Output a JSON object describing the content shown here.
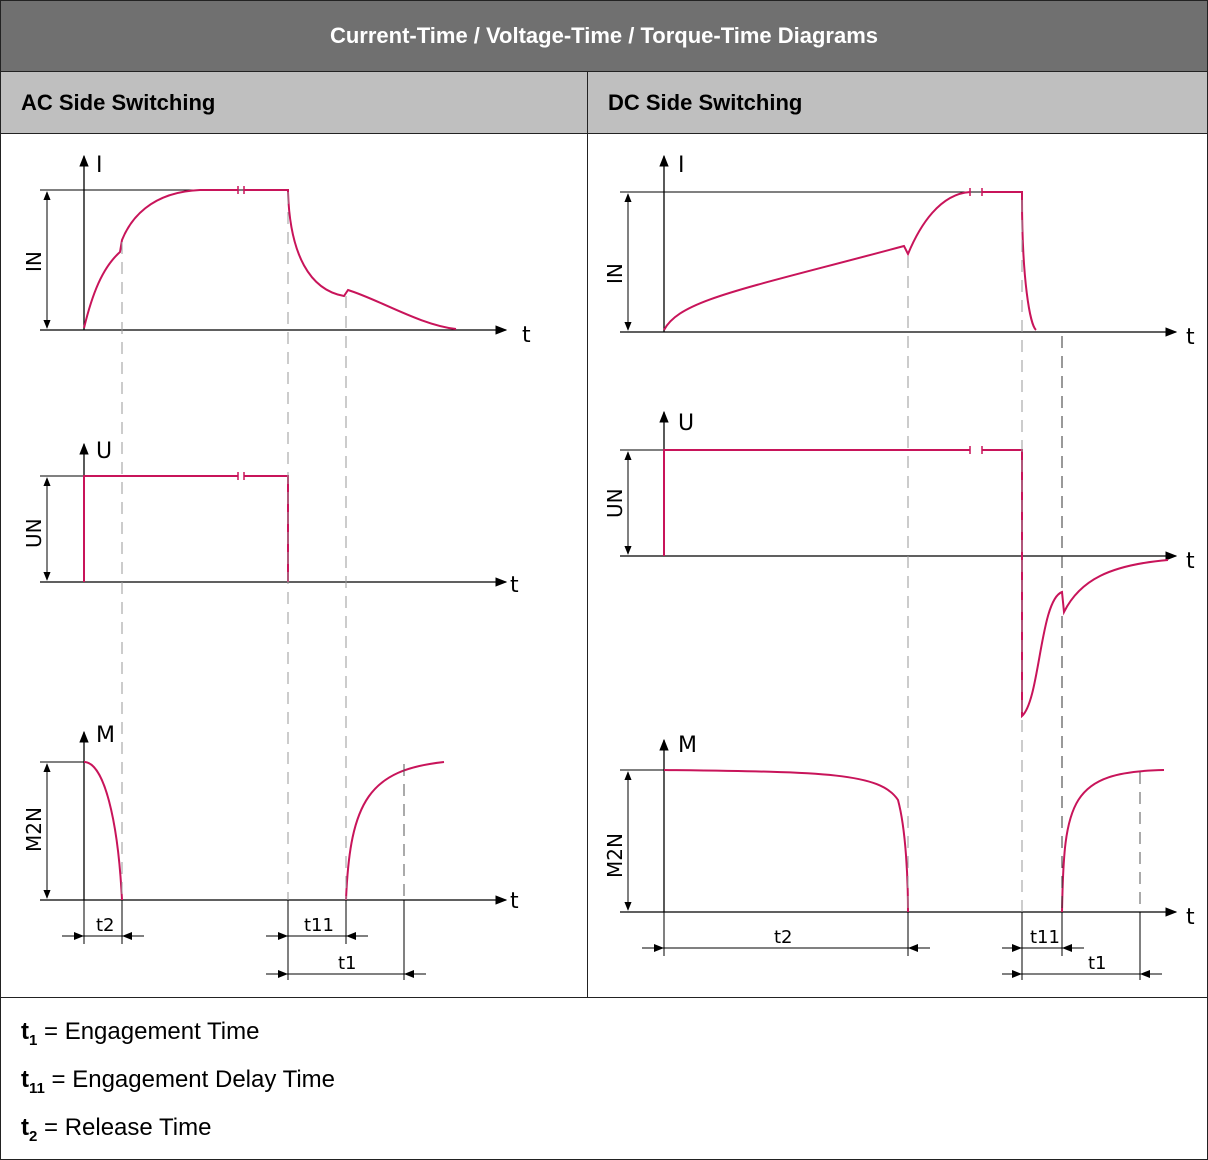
{
  "title": "Current-Time / Voltage-Time / Torque-Time Diagrams",
  "columns": {
    "ac": "AC Side Switching",
    "dc": "DC Side Switching"
  },
  "axis_labels": {
    "current": "I",
    "voltage": "U",
    "torque": "M",
    "time": "t",
    "rated_current": "IN",
    "rated_voltage": "UN",
    "rated_torque": "M2N"
  },
  "time_markers": {
    "t1": "t1",
    "t11": "t11",
    "t2": "t2"
  },
  "legend": [
    {
      "symbol": "t",
      "sub": "1",
      "text": " = Engagement Time"
    },
    {
      "symbol": "t",
      "sub": "11",
      "text": " = Engagement Delay Time"
    },
    {
      "symbol": "t",
      "sub": "2",
      "text": " = Release Time"
    }
  ],
  "colors": {
    "curve": "#c8145a",
    "header_dark": "#707070",
    "header_light": "#bfbfbf",
    "guide": "#999999"
  }
}
